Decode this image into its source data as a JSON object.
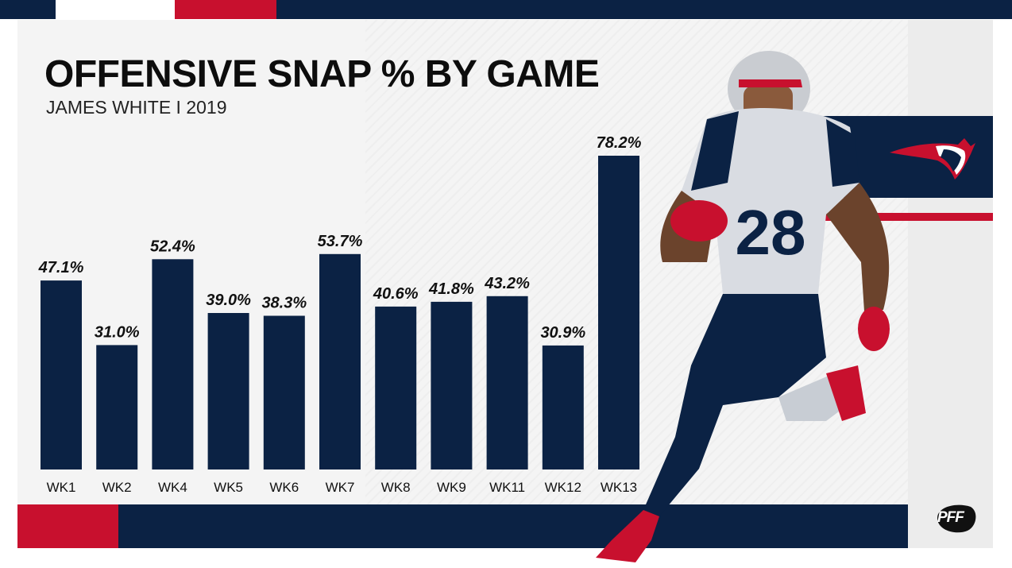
{
  "header": {
    "title": "OFFENSIVE SNAP % BY GAME",
    "subtitle": "JAMES WHITE I 2019"
  },
  "colors": {
    "navy": "#0b2244",
    "red": "#c8102e",
    "bar": "#0b2244"
  },
  "branding": {
    "team_logo_icon": "patriots-logo-icon",
    "pff_logo_text": "PFF"
  },
  "chart_data": {
    "type": "bar",
    "title": "OFFENSIVE SNAP % BY GAME",
    "subtitle": "JAMES WHITE I 2019",
    "categories": [
      "WK1",
      "WK2",
      "WK4",
      "WK5",
      "WK6",
      "WK7",
      "WK8",
      "WK9",
      "WK11",
      "WK12",
      "WK13"
    ],
    "values": [
      47.1,
      31.0,
      52.4,
      39.0,
      38.3,
      53.7,
      40.6,
      41.8,
      43.2,
      30.9,
      78.2
    ],
    "data_labels": [
      "47.1%",
      "31.0%",
      "52.4%",
      "39.0%",
      "38.3%",
      "53.7%",
      "40.6%",
      "41.8%",
      "43.2%",
      "30.9%",
      "78.2%"
    ],
    "xlabel": "",
    "ylabel": "",
    "ylim": [
      0,
      78.2
    ],
    "grid": false,
    "legend": "none"
  }
}
